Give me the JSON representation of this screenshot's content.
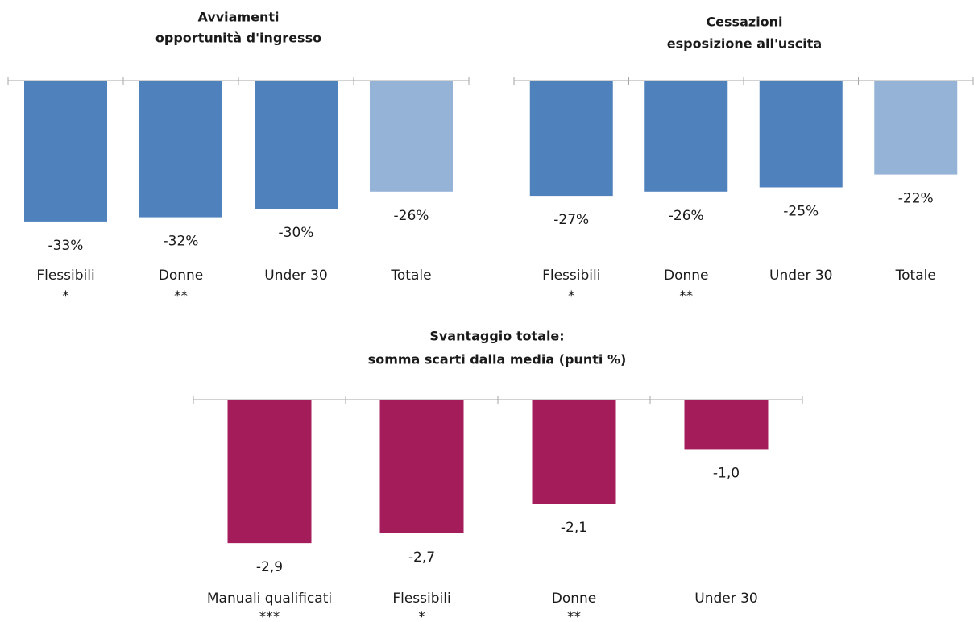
{
  "chart_data": [
    {
      "type": "bar",
      "title": [
        "Avviamenti",
        "opportunità d'ingresso"
      ],
      "categories": [
        "Flessibili",
        "Donne",
        "Under 30",
        "Totale"
      ],
      "category_notes": [
        "*",
        "**",
        null,
        null
      ],
      "values": [
        -33,
        -32,
        -30,
        -26
      ],
      "value_labels": [
        "-33%",
        "-32%",
        "-30%",
        "-26%"
      ],
      "colors": [
        "#4f81bd",
        "#4f81bd",
        "#4f81bd",
        "#95b3d7"
      ],
      "ylim": [
        -40,
        0
      ]
    },
    {
      "type": "bar",
      "title": [
        "Cessazioni",
        "esposizione all'uscita"
      ],
      "categories": [
        "Flessibili",
        "Donne",
        "Under 30",
        "Totale"
      ],
      "category_notes": [
        "*",
        "**",
        null,
        null
      ],
      "values": [
        -27,
        -26,
        -25,
        -22
      ],
      "value_labels": [
        "-27%",
        "-26%",
        "-25%",
        "-22%"
      ],
      "colors": [
        "#4f81bd",
        "#4f81bd",
        "#4f81bd",
        "#95b3d7"
      ],
      "ylim": [
        -40,
        0
      ]
    },
    {
      "type": "bar",
      "title": [
        "Svantaggio totale:",
        "somma scarti dalla media  (punti %)"
      ],
      "categories": [
        "Manuali qualificati",
        "Flessibili",
        "Donne",
        "Under 30"
      ],
      "category_notes": [
        "***",
        "*",
        "**",
        null
      ],
      "values": [
        -2.9,
        -2.7,
        -2.1,
        -1.0
      ],
      "value_labels": [
        "-2,9",
        "-2,7",
        "-2,1",
        "-1,0"
      ],
      "colors": [
        "#a51c5b",
        "#a51c5b",
        "#a51c5b",
        "#a51c5b"
      ],
      "ylim": [
        -3.5,
        0
      ]
    }
  ]
}
